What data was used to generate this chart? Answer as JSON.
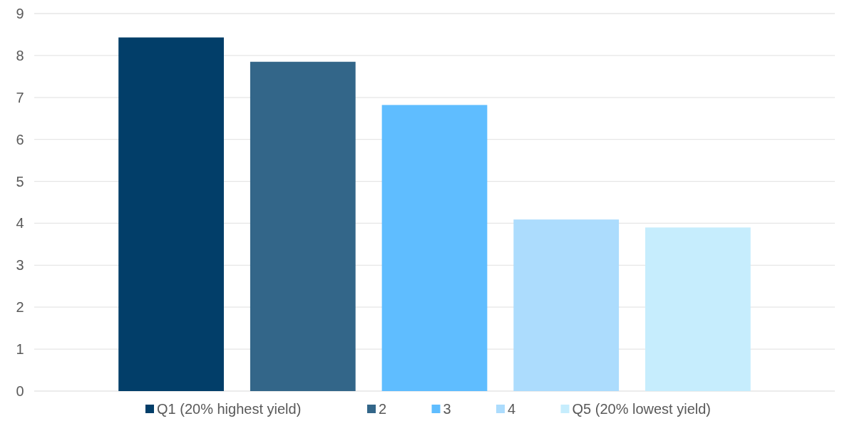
{
  "chart_data": {
    "type": "bar",
    "categories": [
      null
    ],
    "series": [
      {
        "name": "Q1 (20% highest yield)",
        "color": "#023e69",
        "values": [
          8.43
        ]
      },
      {
        "name": "2",
        "color": "#336689",
        "values": [
          7.85
        ]
      },
      {
        "name": "3",
        "color": "#5fbdff",
        "values": [
          6.82
        ]
      },
      {
        "name": "4",
        "color": "#acdcfd",
        "values": [
          4.09
        ]
      },
      {
        "name": "Q5 (20% lowest yield)",
        "color": "#c6edfd",
        "values": [
          3.9
        ]
      }
    ],
    "ylim": [
      0,
      9
    ],
    "yticks": [
      0,
      1,
      2,
      3,
      4,
      5,
      6,
      7,
      8,
      9
    ],
    "grid": "y",
    "legend": "bottom"
  }
}
